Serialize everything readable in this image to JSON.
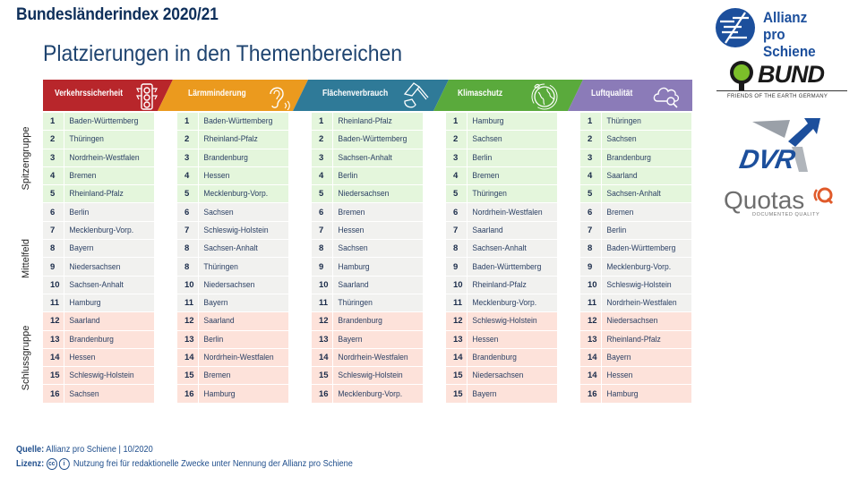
{
  "header": {
    "title": "Bundesländerindex 2020/21",
    "subtitle": "Platzierungen in den Themenbereichen"
  },
  "groups": [
    {
      "label": "Spitzengruppe",
      "color": "#e4f6dc"
    },
    {
      "label": "Mittelfeld",
      "color": "#f1f1ef"
    },
    {
      "label": "Schlussgruppe",
      "color": "#fde2da"
    }
  ],
  "categories": [
    {
      "name": "Verkehrssicherheit",
      "color": "#b8262b",
      "icon": "traffic-light-icon",
      "ranks": [
        {
          "rank": "1",
          "state": "Baden-Württemberg"
        },
        {
          "rank": "2",
          "state": "Thüringen"
        },
        {
          "rank": "3",
          "state": "Nordrhein-Westfalen"
        },
        {
          "rank": "4",
          "state": "Bremen"
        },
        {
          "rank": "5",
          "state": "Rheinland-Pfalz"
        },
        {
          "rank": "6",
          "state": "Berlin"
        },
        {
          "rank": "7",
          "state": "Mecklenburg-Vorp."
        },
        {
          "rank": "8",
          "state": "Bayern"
        },
        {
          "rank": "9",
          "state": "Niedersachsen"
        },
        {
          "rank": "10",
          "state": "Sachsen-Anhalt"
        },
        {
          "rank": "11",
          "state": "Hamburg"
        },
        {
          "rank": "12",
          "state": "Saarland"
        },
        {
          "rank": "13",
          "state": "Brandenburg"
        },
        {
          "rank": "14",
          "state": "Hessen"
        },
        {
          "rank": "15",
          "state": "Schleswig-Holstein"
        },
        {
          "rank": "16",
          "state": "Sachsen"
        }
      ]
    },
    {
      "name": "Lärmminderung",
      "color": "#eb9a1e",
      "icon": "ear-icon",
      "ranks": [
        {
          "rank": "1",
          "state": "Baden-Württemberg"
        },
        {
          "rank": "2",
          "state": "Rheinland-Pfalz"
        },
        {
          "rank": "3",
          "state": "Brandenburg"
        },
        {
          "rank": "4",
          "state": "Hessen"
        },
        {
          "rank": "5",
          "state": "Mecklenburg-Vorp."
        },
        {
          "rank": "6",
          "state": "Sachsen"
        },
        {
          "rank": "7",
          "state": "Schleswig-Holstein"
        },
        {
          "rank": "8",
          "state": "Sachsen-Anhalt"
        },
        {
          "rank": "8",
          "state": "Thüringen"
        },
        {
          "rank": "10",
          "state": "Niedersachsen"
        },
        {
          "rank": "11",
          "state": "Bayern"
        },
        {
          "rank": "12",
          "state": "Saarland"
        },
        {
          "rank": "13",
          "state": "Berlin"
        },
        {
          "rank": "14",
          "state": "Nordrhein-Westfalen"
        },
        {
          "rank": "15",
          "state": "Bremen"
        },
        {
          "rank": "16",
          "state": "Hamburg"
        }
      ]
    },
    {
      "name": "Flächenverbrauch",
      "color": "#2f7a98",
      "icon": "excavator-icon",
      "ranks": [
        {
          "rank": "1",
          "state": "Rheinland-Pfalz"
        },
        {
          "rank": "2",
          "state": "Baden-Württemberg"
        },
        {
          "rank": "3",
          "state": "Sachsen-Anhalt"
        },
        {
          "rank": "4",
          "state": "Berlin"
        },
        {
          "rank": "5",
          "state": "Niedersachsen"
        },
        {
          "rank": "6",
          "state": "Bremen"
        },
        {
          "rank": "7",
          "state": "Hessen"
        },
        {
          "rank": "8",
          "state": "Sachsen"
        },
        {
          "rank": "9",
          "state": "Hamburg"
        },
        {
          "rank": "10",
          "state": "Saarland"
        },
        {
          "rank": "11",
          "state": "Thüringen"
        },
        {
          "rank": "12",
          "state": "Brandenburg"
        },
        {
          "rank": "13",
          "state": "Bayern"
        },
        {
          "rank": "14",
          "state": "Nordrhein-Westfalen"
        },
        {
          "rank": "15",
          "state": "Schleswig-Holstein"
        },
        {
          "rank": "16",
          "state": "Mecklenburg-Vorp."
        }
      ]
    },
    {
      "name": "Klimaschutz",
      "color": "#5aaa3c",
      "icon": "globe-icon",
      "ranks": [
        {
          "rank": "1",
          "state": "Hamburg"
        },
        {
          "rank": "2",
          "state": "Sachsen"
        },
        {
          "rank": "3",
          "state": "Berlin"
        },
        {
          "rank": "4",
          "state": "Bremen"
        },
        {
          "rank": "5",
          "state": "Thüringen"
        },
        {
          "rank": "6",
          "state": "Nordrhein-Westfalen"
        },
        {
          "rank": "7",
          "state": "Saarland"
        },
        {
          "rank": "8",
          "state": "Sachsen-Anhalt"
        },
        {
          "rank": "9",
          "state": "Baden-Württemberg"
        },
        {
          "rank": "10",
          "state": "Rheinland-Pfalz"
        },
        {
          "rank": "11",
          "state": "Mecklenburg-Vorp."
        },
        {
          "rank": "12",
          "state": "Schleswig-Holstein"
        },
        {
          "rank": "13",
          "state": "Hessen"
        },
        {
          "rank": "14",
          "state": "Brandenburg"
        },
        {
          "rank": "15",
          "state": "Niedersachsen"
        },
        {
          "rank": "15",
          "state": "Bayern"
        }
      ]
    },
    {
      "name": "Luftqualität",
      "color": "#8b7bb8",
      "icon": "cloud-search-icon",
      "ranks": [
        {
          "rank": "1",
          "state": "Thüringen"
        },
        {
          "rank": "2",
          "state": "Sachsen"
        },
        {
          "rank": "3",
          "state": "Brandenburg"
        },
        {
          "rank": "4",
          "state": "Saarland"
        },
        {
          "rank": "5",
          "state": "Sachsen-Anhalt"
        },
        {
          "rank": "6",
          "state": "Bremen"
        },
        {
          "rank": "7",
          "state": "Berlin"
        },
        {
          "rank": "8",
          "state": "Baden-Württemberg"
        },
        {
          "rank": "9",
          "state": "Mecklenburg-Vorp."
        },
        {
          "rank": "10",
          "state": "Schleswig-Holstein"
        },
        {
          "rank": "11",
          "state": "Nordrhein-Westfalen"
        },
        {
          "rank": "12",
          "state": "Niedersachsen"
        },
        {
          "rank": "13",
          "state": "Rheinland-Pfalz"
        },
        {
          "rank": "14",
          "state": "Bayern"
        },
        {
          "rank": "14",
          "state": "Hessen"
        },
        {
          "rank": "16",
          "state": "Hamburg"
        }
      ]
    }
  ],
  "logos": {
    "allianz_line1": "Allianz",
    "allianz_line2": "pro Schiene",
    "bund": "BUND",
    "bund_tagline": "FRIENDS OF THE EARTH GERMANY",
    "dvr": "DVR",
    "quotas": "Quotas",
    "quotas_tagline": "DOCUMENTED QUALITY"
  },
  "footer": {
    "source_label": "Quelle:",
    "source_value": "Allianz pro Schiene | 10/2020",
    "license_label": "Lizenz:",
    "license_cc": "cc",
    "license_by": "i",
    "license_value": "Nutzung frei für redaktionelle Zwecke unter Nennung der Allianz pro Schiene"
  }
}
